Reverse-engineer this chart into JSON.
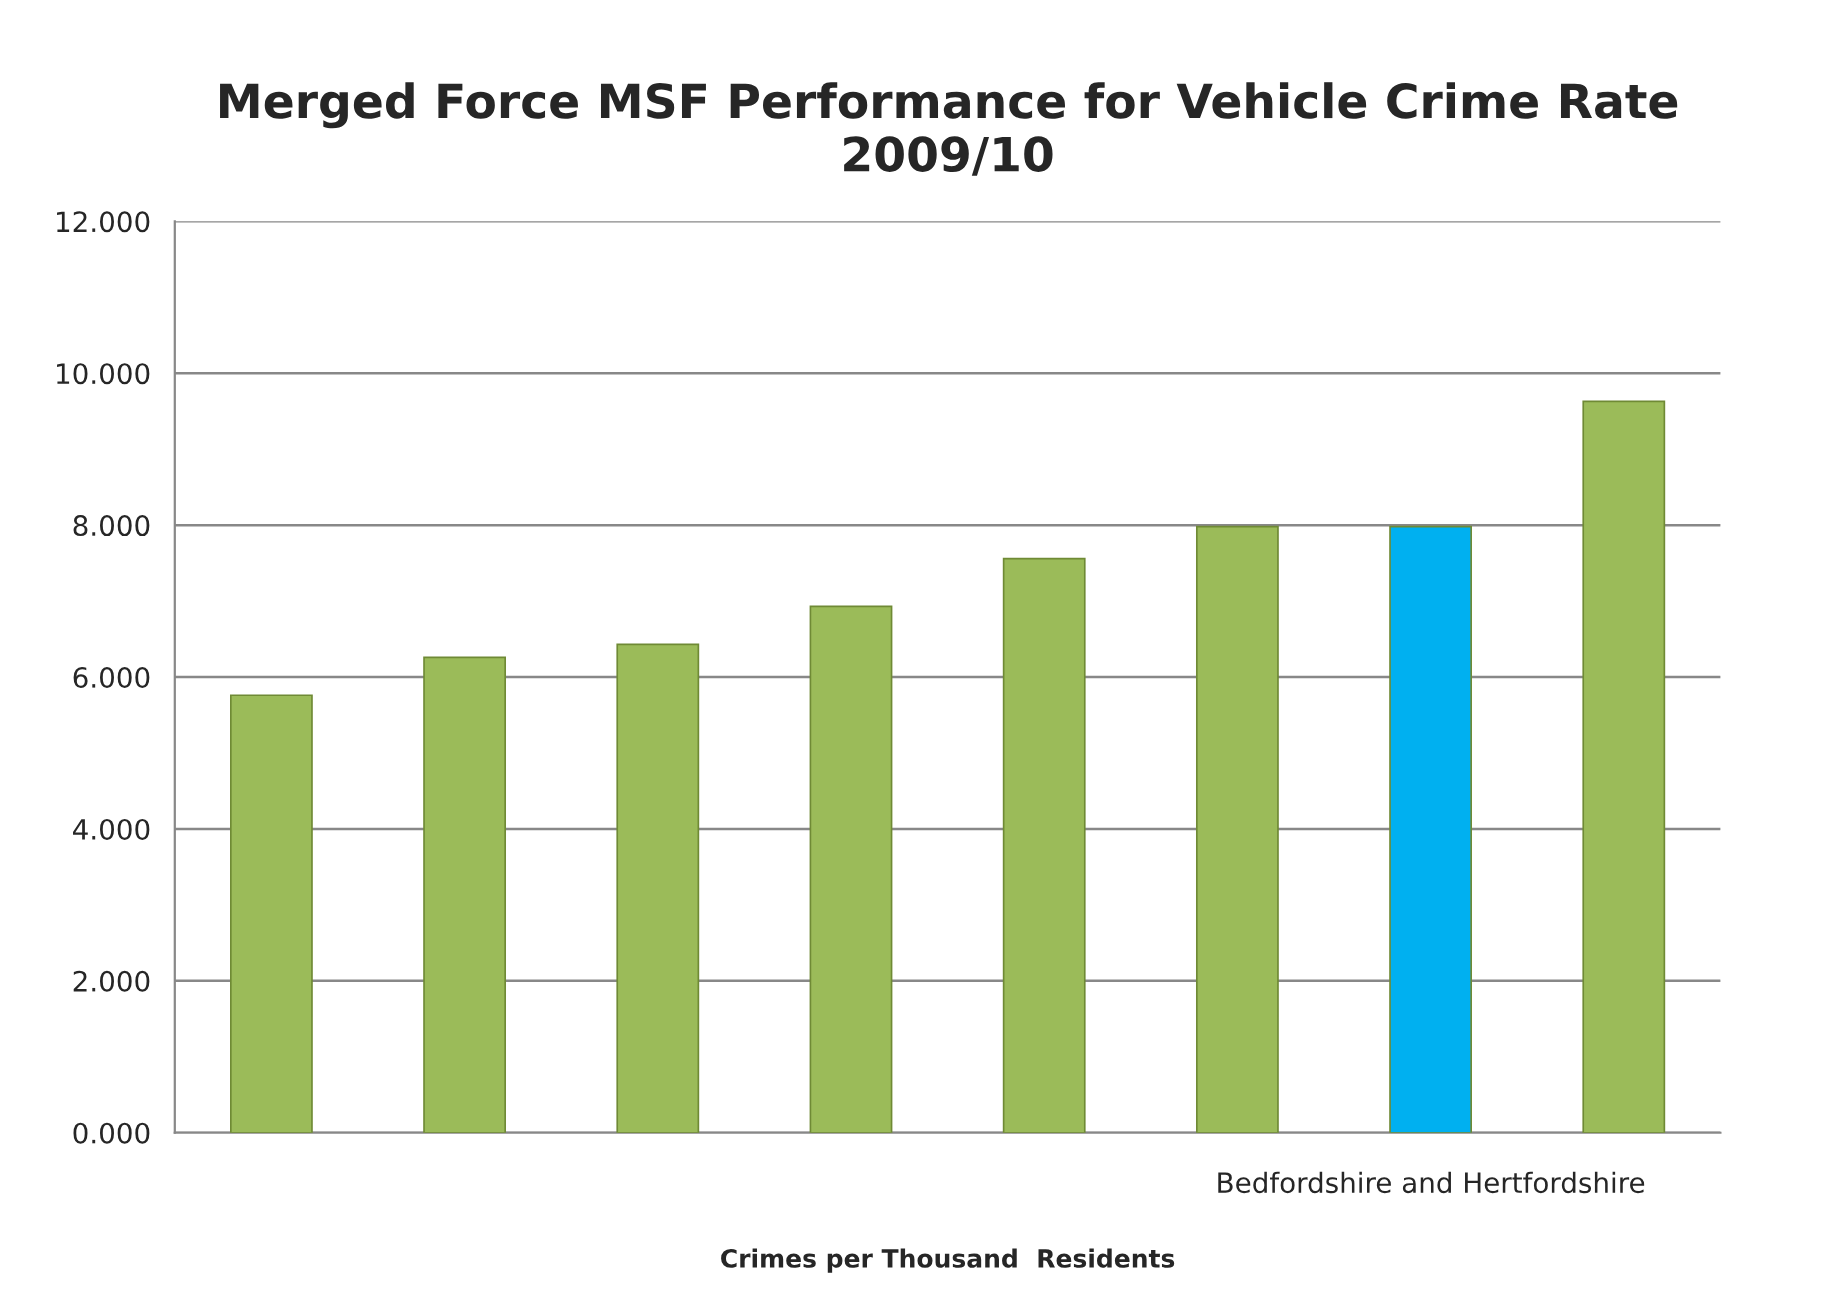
{
  "chart_data": {
    "type": "bar",
    "title": "Merged Force MSF Performance for Vehicle Crime Rate\n2009/10",
    "xlabel": "Crimes per Thousand  Residents",
    "categories": [
      null,
      null,
      null,
      null,
      null,
      null,
      "Bedfordshire and Hertfordshire",
      null
    ],
    "values": [
      5.76,
      6.26,
      6.43,
      6.93,
      7.56,
      7.98,
      7.98,
      9.63
    ],
    "colors": [
      "#9bbb59",
      "#9bbb59",
      "#9bbb59",
      "#9bbb59",
      "#9bbb59",
      "#9bbb59",
      "#00b0f0",
      "#9bbb59"
    ],
    "ylim": [
      0,
      12
    ],
    "yticks": [
      {
        "value": 0,
        "label": "0.000"
      },
      {
        "value": 2,
        "label": "2.000"
      },
      {
        "value": 4,
        "label": "4.000"
      },
      {
        "value": 6,
        "label": "6.000"
      },
      {
        "value": 8,
        "label": "8.000"
      },
      {
        "value": 10,
        "label": "10.000"
      },
      {
        "value": 12,
        "label": "12.000"
      }
    ],
    "grid": "y",
    "legend": false
  }
}
